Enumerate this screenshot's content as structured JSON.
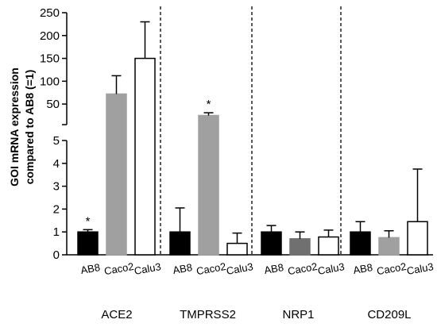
{
  "chart_data": {
    "type": "bar",
    "ylabel": "GOI mRNA expression compared to AB8 (=1)",
    "ylabel_lines": [
      "GOI mRNA expression",
      "compared to AB8 (=1)"
    ],
    "y_axis": {
      "broken": true,
      "lower_range": [
        0,
        5
      ],
      "lower_ticks": [
        "0",
        "1",
        "2",
        "3",
        "4",
        "5"
      ],
      "upper_range": [
        5,
        250
      ],
      "upper_ticks": [
        "50",
        "100",
        "150",
        "200",
        "250"
      ]
    },
    "groups": [
      {
        "name": "ACE2",
        "bars": [
          {
            "label": "AB8",
            "value": 1.0,
            "error": 0.1,
            "color": "#000000",
            "significant": true
          },
          {
            "label": "Caco2",
            "value": 72,
            "error": 40,
            "color": "#a0a0a0",
            "significant": false
          },
          {
            "label": "Calu3",
            "value": 150,
            "error": 80,
            "color": "#ffffff",
            "significant": false
          }
        ]
      },
      {
        "name": "TMPRSS2",
        "bars": [
          {
            "label": "AB8",
            "value": 1.0,
            "error": 1.05,
            "color": "#000000",
            "significant": false
          },
          {
            "label": "Caco2",
            "value": 25,
            "error": 6,
            "color": "#a0a0a0",
            "significant": true
          },
          {
            "label": "Calu3",
            "value": 0.5,
            "error": 0.45,
            "color": "#ffffff",
            "significant": false
          }
        ]
      },
      {
        "name": "NRP1",
        "bars": [
          {
            "label": "AB8",
            "value": 1.0,
            "error": 0.28,
            "color": "#000000",
            "significant": false
          },
          {
            "label": "Caco2",
            "value": 0.7,
            "error": 0.3,
            "color": "#707070",
            "significant": false
          },
          {
            "label": "Calu3",
            "value": 0.78,
            "error": 0.3,
            "color": "#ffffff",
            "significant": false
          }
        ]
      },
      {
        "name": "CD209L",
        "bars": [
          {
            "label": "AB8",
            "value": 1.0,
            "error": 0.45,
            "color": "#000000",
            "significant": false
          },
          {
            "label": "Caco2",
            "value": 0.75,
            "error": 0.3,
            "color": "#a0a0a0",
            "significant": false
          },
          {
            "label": "Calu3",
            "value": 1.45,
            "error": 2.3,
            "color": "#ffffff",
            "significant": false
          }
        ]
      }
    ],
    "significance_marker": "*",
    "group_separators": "dashed"
  }
}
